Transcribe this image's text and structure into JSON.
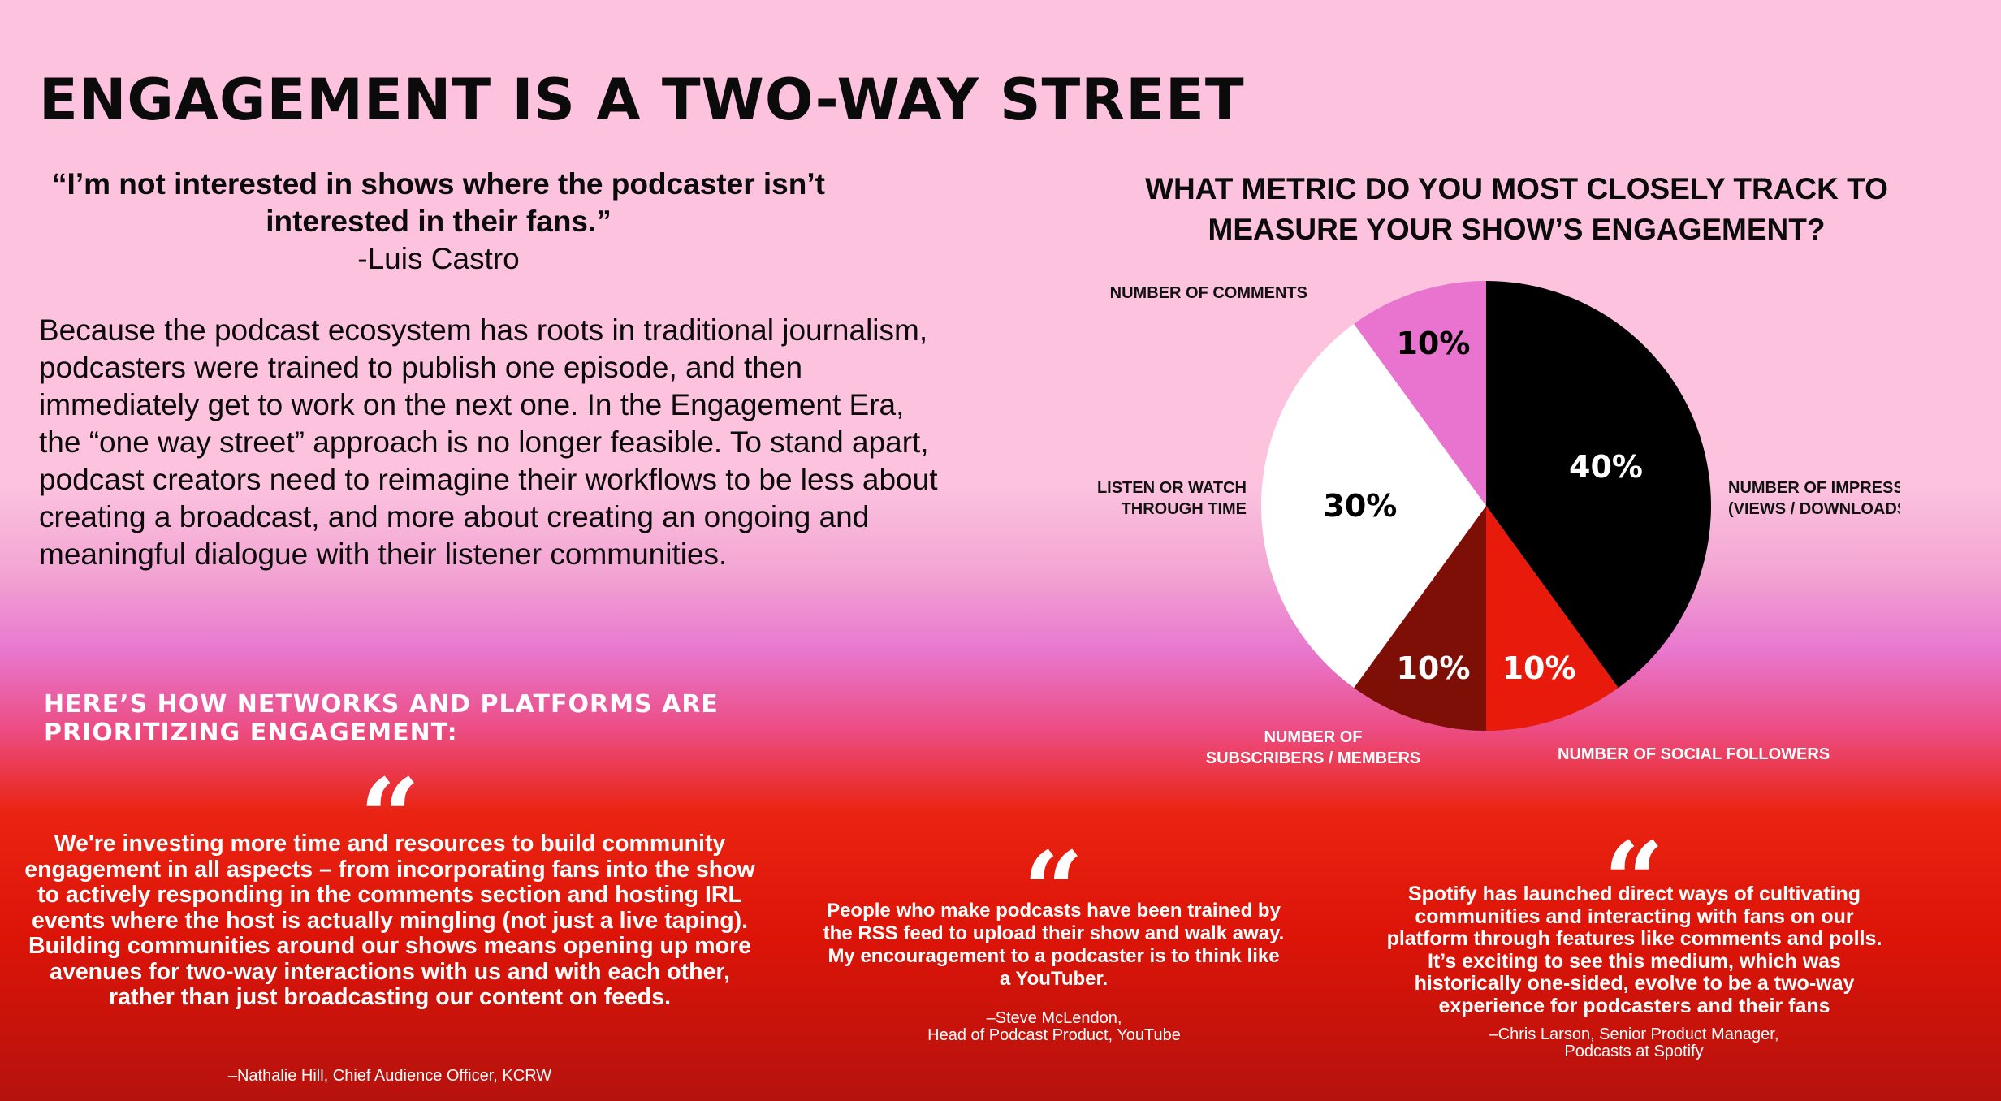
{
  "title": "ENGAGEMENT IS A TWO-WAY STREET",
  "lead_quote": {
    "text": "“I’m not interested in shows where the podcaster isn’t interested in their fans.”",
    "author": "-Luis Castro"
  },
  "intro": "Because the podcast ecosystem has roots in traditional journalism, podcasters were trained to publish one episode, and then immediately get to work on the next one. In the Engagement Era, the “one way street” approach is no longer feasible. To stand apart, podcast creators need to reimagine their workflows to be less about creating a broadcast, and more about creating an ongoing and meaningful dialogue with their listener communities.",
  "networks_heading": "HERE’S HOW NETWORKS AND PLATFORMS ARE PRIORITIZING ENGAGEMENT:",
  "quotes": [
    {
      "mark": "“",
      "text": "We're investing more time and resources to build community engagement in all aspects – from incorporating fans into the show to actively responding in the comments section and hosting IRL events where the host is actually mingling (not just a live taping). Building communities around our shows means opening up more avenues for two-way interactions with us and with each other, rather than just broadcasting our content on feeds.",
      "attribution": "–Nathalie Hill, Chief Audience Officer, KCRW"
    },
    {
      "mark": "“",
      "text": "People who make podcasts have been trained by the RSS feed to upload their show and walk away. My encouragement to a podcaster is to think like a YouTuber.",
      "attribution_line1": "–Steve McLendon,",
      "attribution_line2": "Head of Podcast Product, YouTube"
    },
    {
      "mark": "“",
      "text": "Spotify has launched direct ways of cultivating communities and interacting with fans on our platform through features like comments and polls. It’s exciting to see this medium, which was historically one-sided, evolve to be a two-way experience for podcasters and their fans",
      "attribution_line1": "–Chris Larson, Senior Product Manager,",
      "attribution_line2": "Podcasts at Spotify"
    }
  ],
  "chart_data": {
    "type": "pie",
    "title": "WHAT METRIC DO YOU MOST CLOSELY TRACK TO MEASURE YOUR SHOW’S ENGAGEMENT?",
    "slices": [
      {
        "label": [
          "NUMBER OF IMPRESSIONS",
          "(VIEWS / DOWNLOADS)"
        ],
        "value": 40,
        "pct_label": "40%",
        "color": "#000000",
        "text_color": "#ffffff"
      },
      {
        "label": [
          "NUMBER OF SOCIAL FOLLOWERS"
        ],
        "value": 10,
        "pct_label": "10%",
        "color": "#e81a0b",
        "text_color": "#ffffff"
      },
      {
        "label": [
          "NUMBER OF",
          "SUBSCRIBERS / MEMBERS"
        ],
        "value": 10,
        "pct_label": "10%",
        "color": "#7d0f07",
        "text_color": "#ffffff"
      },
      {
        "label": [
          "LISTEN OR WATCH",
          "THROUGH TIME"
        ],
        "value": 30,
        "pct_label": "30%",
        "color": "#ffffff",
        "text_color": "#000000"
      },
      {
        "label": [
          "NUMBER OF COMMENTS"
        ],
        "value": 10,
        "pct_label": "10%",
        "color": "#e874cf",
        "text_color": "#000000"
      }
    ]
  }
}
